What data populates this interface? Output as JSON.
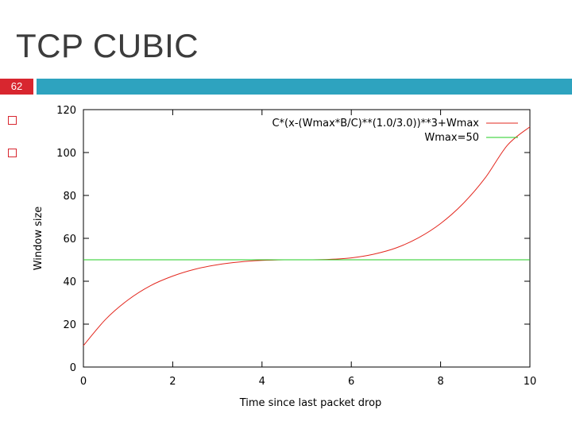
{
  "slide": {
    "title": "TCP CUBIC",
    "number": "62",
    "accent_color": "#d8262f",
    "bar_color": "#2ea3bf",
    "bullets": [
      "",
      ""
    ]
  },
  "chart_data": {
    "type": "line",
    "title": "",
    "xlabel": "Time since last packet drop",
    "ylabel": "Window size",
    "xlim": [
      0,
      10
    ],
    "ylim": [
      0,
      120
    ],
    "xticks": [
      0,
      2,
      4,
      6,
      8,
      10
    ],
    "yticks": [
      0,
      20,
      40,
      60,
      80,
      100,
      120
    ],
    "grid": false,
    "legend_position": "top-right",
    "series": [
      {
        "name": "C*(x-(Wmax*B/C)**(1.0/3.0))**3+Wmax",
        "color": "#e3281f",
        "x": [
          0,
          0.5,
          1,
          1.5,
          2,
          2.5,
          3,
          3.5,
          4,
          4.5,
          5,
          5.5,
          6,
          6.5,
          7,
          7.5,
          8,
          8.5,
          9,
          9.5,
          10
        ],
        "y": [
          10,
          22.3,
          31.3,
          37.9,
          42.4,
          45.6,
          47.7,
          49,
          49.7,
          50,
          50,
          50.2,
          50.9,
          52.6,
          55.5,
          60.2,
          66.9,
          76.1,
          88.2,
          103.5,
          112
        ]
      },
      {
        "name": "Wmax=50",
        "color": "#22cc22",
        "x": [
          0,
          10
        ],
        "y": [
          50,
          50
        ]
      }
    ]
  }
}
